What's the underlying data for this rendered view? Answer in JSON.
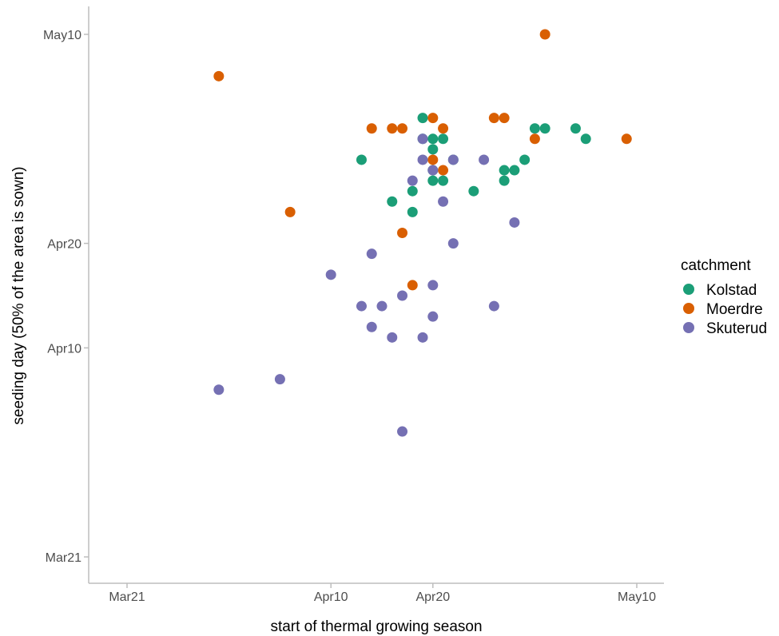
{
  "chart_data": {
    "type": "scatter",
    "title": "",
    "xlabel": "start of thermal growing season",
    "ylabel": "seeding day (50% of the area is sown)",
    "x_ticks": [
      {
        "label": "Mar21",
        "value": "2000-03-21"
      },
      {
        "label": "Apr10",
        "value": "2000-04-10"
      },
      {
        "label": "Apr20",
        "value": "2000-04-20"
      },
      {
        "label": "May10",
        "value": "2000-05-10"
      }
    ],
    "y_ticks": [
      {
        "label": "Mar21",
        "value": "2000-03-21"
      },
      {
        "label": "Apr10",
        "value": "2000-04-10"
      },
      {
        "label": "Apr20",
        "value": "2000-04-20"
      },
      {
        "label": "May10",
        "value": "2000-05-10"
      }
    ],
    "xlim": [
      "2000-03-20",
      "2000-05-11"
    ],
    "ylim": [
      "2000-03-20",
      "2000-05-11"
    ],
    "grid": false,
    "legend": {
      "title": "catchment",
      "position": "right"
    },
    "series": [
      {
        "name": "Kolstad",
        "color": "#1b9e77",
        "points": [
          [
            "2000-04-13",
            "2000-04-28"
          ],
          [
            "2000-04-16",
            "2000-04-24"
          ],
          [
            "2000-04-18",
            "2000-04-25"
          ],
          [
            "2000-04-18",
            "2000-04-23"
          ],
          [
            "2000-04-19",
            "2000-04-30"
          ],
          [
            "2000-04-20",
            "2000-04-29"
          ],
          [
            "2000-04-19",
            "2000-05-02"
          ],
          [
            "2000-04-20",
            "2000-04-30"
          ],
          [
            "2000-04-21",
            "2000-04-30"
          ],
          [
            "2000-04-22",
            "2000-04-28"
          ],
          [
            "2000-04-20",
            "2000-04-27"
          ],
          [
            "2000-04-20",
            "2000-04-26"
          ],
          [
            "2000-04-21",
            "2000-04-26"
          ],
          [
            "2000-04-24",
            "2000-04-25"
          ],
          [
            "2000-04-27",
            "2000-04-27"
          ],
          [
            "2000-04-28",
            "2000-04-27"
          ],
          [
            "2000-04-27",
            "2000-04-26"
          ],
          [
            "2000-04-29",
            "2000-04-28"
          ],
          [
            "2000-04-30",
            "2000-05-01"
          ],
          [
            "2000-05-01",
            "2000-05-01"
          ],
          [
            "2000-05-04",
            "2000-05-01"
          ],
          [
            "2000-05-05",
            "2000-04-30"
          ]
        ]
      },
      {
        "name": "Moerdre",
        "color": "#d95f02",
        "points": [
          [
            "2000-03-30",
            "2000-05-06"
          ],
          [
            "2000-04-06",
            "2000-04-23"
          ],
          [
            "2000-04-14",
            "2000-05-01"
          ],
          [
            "2000-04-16",
            "2000-05-01"
          ],
          [
            "2000-04-17",
            "2000-05-01"
          ],
          [
            "2000-04-17",
            "2000-04-21"
          ],
          [
            "2000-04-18",
            "2000-04-16"
          ],
          [
            "2000-04-20",
            "2000-05-02"
          ],
          [
            "2000-04-21",
            "2000-05-01"
          ],
          [
            "2000-04-21",
            "2000-04-27"
          ],
          [
            "2000-04-20",
            "2000-04-28"
          ],
          [
            "2000-04-26",
            "2000-05-02"
          ],
          [
            "2000-04-27",
            "2000-05-02"
          ],
          [
            "2000-04-30",
            "2000-04-30"
          ],
          [
            "2000-05-01",
            "2000-05-10"
          ],
          [
            "2000-05-09",
            "2000-04-30"
          ]
        ]
      },
      {
        "name": "Skuterud",
        "color": "#7570b3",
        "points": [
          [
            "2000-03-30",
            "2000-04-06"
          ],
          [
            "2000-04-05",
            "2000-04-07"
          ],
          [
            "2000-04-10",
            "2000-04-17"
          ],
          [
            "2000-04-14",
            "2000-04-19"
          ],
          [
            "2000-04-13",
            "2000-04-14"
          ],
          [
            "2000-04-15",
            "2000-04-14"
          ],
          [
            "2000-04-14",
            "2000-04-12"
          ],
          [
            "2000-04-16",
            "2000-04-11"
          ],
          [
            "2000-04-17",
            "2000-04-15"
          ],
          [
            "2000-04-19",
            "2000-04-11"
          ],
          [
            "2000-04-20",
            "2000-04-13"
          ],
          [
            "2000-04-17",
            "2000-04-02"
          ],
          [
            "2000-04-18",
            "2000-04-26"
          ],
          [
            "2000-04-19",
            "2000-04-28"
          ],
          [
            "2000-04-19",
            "2000-04-30"
          ],
          [
            "2000-04-20",
            "2000-04-27"
          ],
          [
            "2000-04-21",
            "2000-04-24"
          ],
          [
            "2000-04-22",
            "2000-04-20"
          ],
          [
            "2000-04-22",
            "2000-04-28"
          ],
          [
            "2000-04-20",
            "2000-04-16"
          ],
          [
            "2000-04-25",
            "2000-04-28"
          ],
          [
            "2000-04-26",
            "2000-04-14"
          ],
          [
            "2000-04-28",
            "2000-04-22"
          ]
        ]
      }
    ]
  }
}
